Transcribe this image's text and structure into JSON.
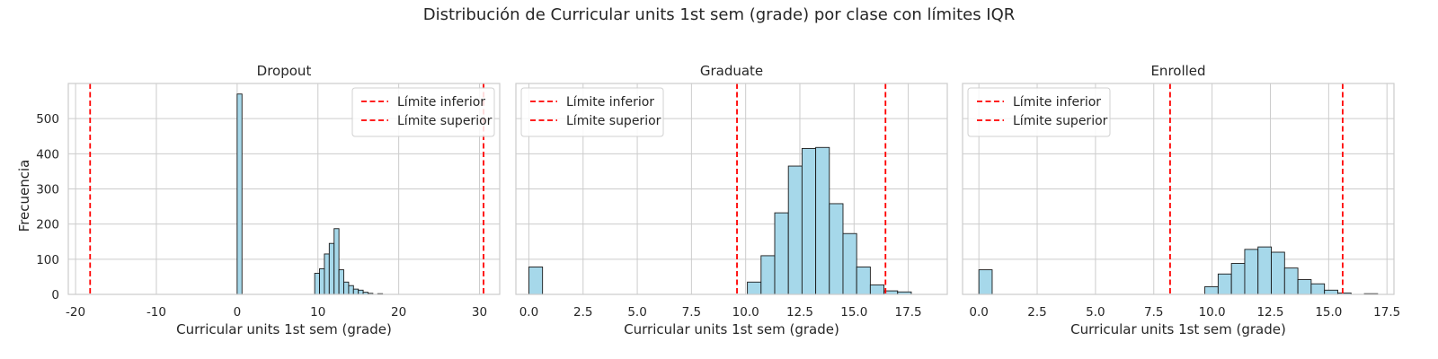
{
  "figure": {
    "suptitle": "Distribución de Curricular units 1st sem (grade) por clase con límites IQR",
    "ylabel": "Frecuencia"
  },
  "colors": {
    "bar_fill": "#a6d8ea",
    "bar_edge": "#1a1a1a",
    "limit_line": "#ff0000",
    "grid": "#cccccc",
    "frame": "#cccccc"
  },
  "chart_data": [
    {
      "type": "bar",
      "title": "Dropout",
      "xlabel": "Curricular units 1st sem (grade)",
      "ylabel": "Frecuencia",
      "xlim": [
        -20.9,
        32.5
      ],
      "ylim": [
        0,
        600
      ],
      "xticks": [
        "-20",
        "-10",
        "0",
        "10",
        "20",
        "30"
      ],
      "yticks": [
        "0",
        "100",
        "200",
        "300",
        "400",
        "500"
      ],
      "grid": true,
      "legend_position": "top-right",
      "bin_width": 0.6,
      "bins": [
        {
          "x0": 0.0,
          "count": 570
        },
        {
          "x0": 9.6,
          "count": 60
        },
        {
          "x0": 10.2,
          "count": 73
        },
        {
          "x0": 10.8,
          "count": 115
        },
        {
          "x0": 11.4,
          "count": 145
        },
        {
          "x0": 12.0,
          "count": 187
        },
        {
          "x0": 12.6,
          "count": 70
        },
        {
          "x0": 13.2,
          "count": 35
        },
        {
          "x0": 13.8,
          "count": 25
        },
        {
          "x0": 14.4,
          "count": 15
        },
        {
          "x0": 15.0,
          "count": 12
        },
        {
          "x0": 15.6,
          "count": 6
        },
        {
          "x0": 16.2,
          "count": 3
        },
        {
          "x0": 17.4,
          "count": 2
        }
      ],
      "lines": [
        {
          "label": "Límite inferior",
          "x": -18.2
        },
        {
          "label": "Límite superior",
          "x": 30.5
        }
      ]
    },
    {
      "type": "bar",
      "title": "Graduate",
      "xlabel": "Curricular units 1st sem (grade)",
      "ylabel": "",
      "xlim": [
        -0.6,
        19.3
      ],
      "ylim": [
        0,
        600
      ],
      "xticks": [
        "0.0",
        "2.5",
        "5.0",
        "7.5",
        "10.0",
        "12.5",
        "15.0",
        "17.5"
      ],
      "yticks": [],
      "grid": true,
      "legend_position": "top-left",
      "bin_width": 0.63,
      "bins": [
        {
          "x0": 0.0,
          "count": 78
        },
        {
          "x0": 10.08,
          "count": 35
        },
        {
          "x0": 10.71,
          "count": 110
        },
        {
          "x0": 11.34,
          "count": 232
        },
        {
          "x0": 11.97,
          "count": 365
        },
        {
          "x0": 12.6,
          "count": 415
        },
        {
          "x0": 13.23,
          "count": 418
        },
        {
          "x0": 13.86,
          "count": 258
        },
        {
          "x0": 14.49,
          "count": 173
        },
        {
          "x0": 15.12,
          "count": 78
        },
        {
          "x0": 15.75,
          "count": 27
        },
        {
          "x0": 16.38,
          "count": 10
        },
        {
          "x0": 17.01,
          "count": 7
        }
      ],
      "lines": [
        {
          "label": "Límite inferior",
          "x": 9.6
        },
        {
          "label": "Límite superior",
          "x": 16.45
        }
      ]
    },
    {
      "type": "bar",
      "title": "Enrolled",
      "xlabel": "Curricular units 1st sem (grade)",
      "ylabel": "",
      "xlim": [
        -0.7,
        17.8
      ],
      "ylim": [
        0,
        600
      ],
      "xticks": [
        "0.0",
        "2.5",
        "5.0",
        "7.5",
        "10.0",
        "12.5",
        "15.0",
        "17.5"
      ],
      "yticks": [],
      "grid": true,
      "legend_position": "top-left",
      "bin_width": 0.57,
      "bins": [
        {
          "x0": 0.0,
          "count": 70
        },
        {
          "x0": 9.69,
          "count": 22
        },
        {
          "x0": 10.26,
          "count": 58
        },
        {
          "x0": 10.83,
          "count": 88
        },
        {
          "x0": 11.4,
          "count": 128
        },
        {
          "x0": 11.97,
          "count": 135
        },
        {
          "x0": 12.54,
          "count": 120
        },
        {
          "x0": 13.11,
          "count": 75
        },
        {
          "x0": 13.68,
          "count": 42
        },
        {
          "x0": 14.25,
          "count": 30
        },
        {
          "x0": 14.82,
          "count": 12
        },
        {
          "x0": 15.39,
          "count": 4
        },
        {
          "x0": 16.53,
          "count": 2
        }
      ],
      "lines": [
        {
          "label": "Límite inferior",
          "x": 8.2
        },
        {
          "label": "Límite superior",
          "x": 15.6
        }
      ]
    }
  ]
}
